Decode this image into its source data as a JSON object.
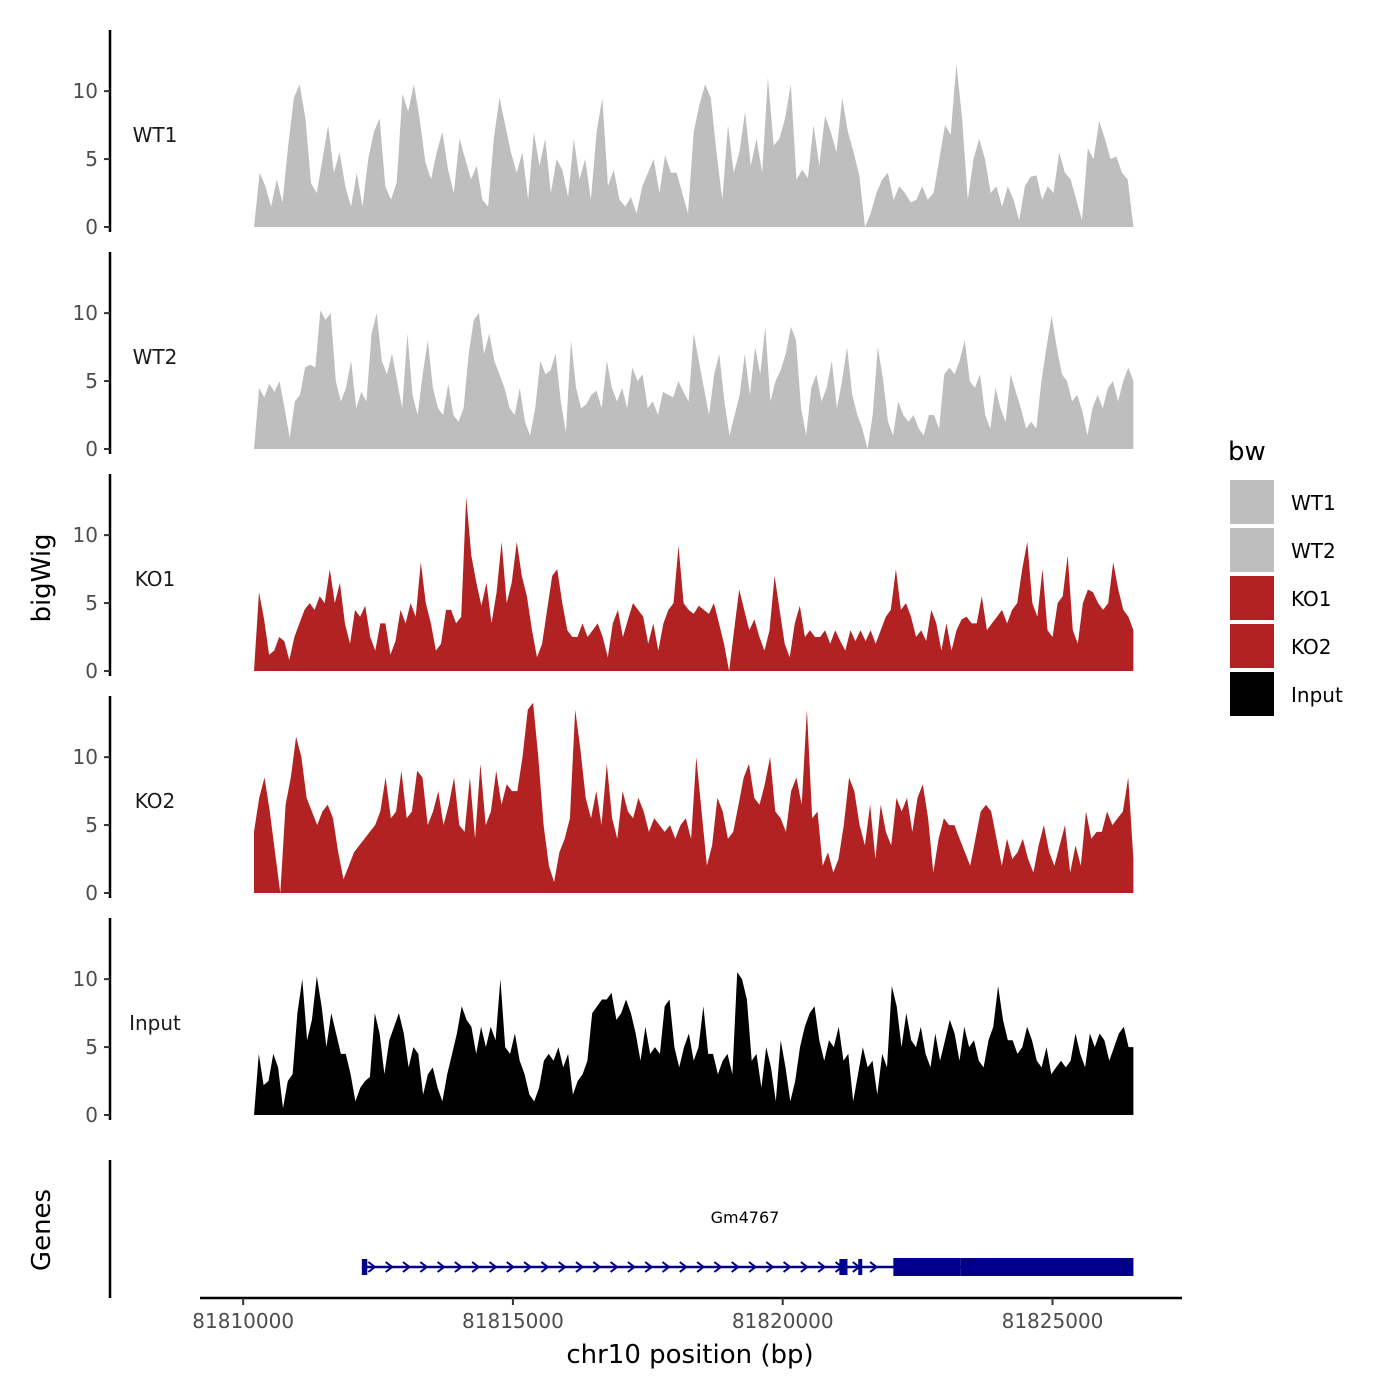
{
  "chart_data": {
    "type": "area",
    "title": "",
    "xlabel": "chr10 position (bp)",
    "ylabel": "bigWig",
    "gene_track_label": "Genes",
    "x_range": [
      81809200,
      81827400
    ],
    "data_x_range": [
      81810200,
      81826500
    ],
    "x_ticks": [
      81810000,
      81815000,
      81820000,
      81825000
    ],
    "x_tick_labels": [
      "81810000",
      "81815000",
      "81820000",
      "81825000"
    ],
    "ylim": [
      0,
      14.5
    ],
    "y_ticks": [
      0,
      5,
      10
    ],
    "y_tick_labels": [
      "0",
      "5",
      "10"
    ],
    "legend": {
      "title": "bw",
      "position": "right",
      "entries": [
        {
          "label": "WT1",
          "color": "#bebebe"
        },
        {
          "label": "WT2",
          "color": "#bebebe"
        },
        {
          "label": "KO1",
          "color": "#b22222"
        },
        {
          "label": "KO2",
          "color": "#b22222"
        },
        {
          "label": "Input",
          "color": "#000000"
        }
      ]
    },
    "series": [
      {
        "name": "WT1",
        "color": "#bebebe",
        "values": [
          0,
          4,
          3,
          1.5,
          3.5,
          1.8,
          6,
          9.5,
          10.5,
          8,
          3.2,
          2.5,
          5,
          7.5,
          4,
          5.5,
          3,
          1.5,
          4,
          1.5,
          5,
          7,
          8,
          3,
          2,
          3.3,
          9.8,
          8.5,
          10.5,
          8,
          4.8,
          3.5,
          5.5,
          7,
          4.2,
          2.5,
          6.5,
          5,
          3.5,
          4.5,
          2,
          1.5,
          6.5,
          9.5,
          7.5,
          5.5,
          4,
          5.5,
          2,
          7,
          4.5,
          6.5,
          2.5,
          5,
          4.2,
          2.2,
          6.5,
          3.5,
          5,
          2,
          7,
          9.5,
          3,
          4.2,
          2,
          1.5,
          2.2,
          1,
          3,
          4,
          5,
          2.5,
          5.3,
          4,
          4,
          2.5,
          1,
          7,
          9,
          10.5,
          9.5,
          5.5,
          2,
          7.5,
          4,
          5.5,
          8.5,
          4.5,
          6.5,
          4,
          11,
          6,
          6.5,
          8,
          10.5,
          3.5,
          4.2,
          3.6,
          7.5,
          4.5,
          8.2,
          7,
          5.5,
          9.5,
          7,
          5.5,
          3.8,
          0,
          1,
          2.5,
          3.5,
          4,
          2,
          3,
          2.5,
          1.8,
          2,
          3,
          2,
          2.5,
          5,
          7.5,
          6.8,
          12,
          8,
          2,
          5,
          6.5,
          5,
          2.5,
          3,
          1.5,
          3,
          2,
          0.5,
          3,
          3.7,
          3.8,
          2,
          3,
          2.5,
          5.5,
          4,
          3.5,
          2,
          0.5,
          5.8,
          5,
          7.8,
          6.5,
          5,
          5.2,
          4,
          3.5,
          0
        ]
      },
      {
        "name": "WT2",
        "color": "#bebebe",
        "values": [
          0,
          4.5,
          3.8,
          4.8,
          4.2,
          5,
          3,
          0.8,
          3.5,
          4,
          6,
          6.2,
          6,
          10.2,
          9.5,
          10,
          5,
          3.5,
          4.5,
          6.5,
          3,
          4.2,
          3.5,
          8.5,
          10,
          6.5,
          5.5,
          7,
          5,
          3,
          8.5,
          4,
          2.5,
          5.5,
          8,
          4.5,
          3,
          2.5,
          4.8,
          2.5,
          2,
          3,
          7,
          9.5,
          10,
          7,
          8.5,
          6.5,
          5.5,
          4.5,
          3,
          2.5,
          4.5,
          2,
          1,
          3,
          6.5,
          5.5,
          5.8,
          7,
          3.5,
          1.2,
          8,
          4.5,
          3,
          3.3,
          4,
          4.3,
          3,
          6.5,
          4.5,
          3.5,
          4.5,
          3,
          6,
          5,
          5.5,
          3,
          3.5,
          2.5,
          4.2,
          4,
          3.8,
          5,
          4.2,
          3.5,
          8.5,
          6.5,
          4.5,
          2.5,
          5.5,
          7,
          3.5,
          1,
          2.5,
          4,
          7,
          4,
          7.5,
          5.5,
          9,
          3.5,
          5,
          5.8,
          7,
          9,
          8,
          3,
          1,
          4.5,
          5.5,
          3.5,
          4.5,
          6.5,
          3,
          5,
          7.5,
          4,
          2.5,
          1.5,
          0,
          2.5,
          7.5,
          5.2,
          2,
          1,
          3.5,
          2.5,
          2,
          2.5,
          1.5,
          1,
          2.5,
          2.5,
          1.5,
          5.5,
          6,
          5.5,
          6.5,
          8,
          5,
          4.5,
          5.5,
          2.5,
          1.5,
          4.5,
          3,
          2,
          5.5,
          4.2,
          3,
          1.5,
          2,
          1.5,
          5,
          7.5,
          9.8,
          7.5,
          5.5,
          5,
          3.5,
          4,
          2.8,
          1,
          3,
          4,
          3,
          4.5,
          5,
          3.5,
          5,
          6,
          5
        ]
      },
      {
        "name": "KO1",
        "color": "#b22222",
        "values": [
          0,
          5.8,
          3.8,
          1.2,
          1.5,
          2.5,
          2.2,
          0.8,
          2.5,
          3.5,
          4.5,
          5,
          4.5,
          5.5,
          5,
          7.5,
          5,
          6.5,
          3.5,
          2,
          4.5,
          4,
          4.8,
          2.5,
          1.5,
          3.5,
          3.5,
          1.2,
          2.2,
          4.5,
          3.5,
          5,
          4,
          8,
          5,
          3.5,
          1.5,
          2,
          4.5,
          4.5,
          3.5,
          4,
          12.8,
          8.5,
          6.5,
          4.8,
          6.5,
          3.5,
          5.8,
          9.5,
          5,
          6.5,
          9.5,
          7,
          5.5,
          3,
          1,
          2,
          4.5,
          7,
          7.5,
          5,
          3,
          2.5,
          2.5,
          3.5,
          2.5,
          3,
          3.5,
          2.5,
          1,
          3.5,
          4.5,
          2.5,
          3.8,
          5,
          4.5,
          4,
          2,
          3.5,
          1.5,
          3.5,
          4.5,
          5,
          9.2,
          5,
          4.5,
          4.2,
          4.8,
          4.5,
          4.2,
          5,
          3.5,
          2,
          0,
          3,
          6,
          4.5,
          3,
          3.8,
          2.5,
          1.5,
          3,
          7,
          4.5,
          2,
          1,
          3.5,
          4.8,
          2.5,
          3,
          2.5,
          2.5,
          3,
          2,
          3,
          2.2,
          1.5,
          3,
          2.2,
          3,
          2.2,
          3,
          2,
          3,
          4,
          4.5,
          7.5,
          4.5,
          5,
          4,
          2.5,
          3,
          2.2,
          4.5,
          3.5,
          1.5,
          3.5,
          1.5,
          3,
          3.8,
          4,
          3.5,
          3.5,
          5.5,
          3,
          3.5,
          4,
          4.5,
          3.5,
          4.5,
          5,
          7.5,
          9.5,
          5,
          4,
          7.5,
          3,
          2.5,
          5,
          5.5,
          8.5,
          3,
          2,
          5,
          6,
          5.8,
          5,
          4.5,
          5,
          8,
          6,
          4.5,
          4,
          3
        ]
      },
      {
        "name": "KO2",
        "color": "#b22222",
        "values": [
          4.5,
          7,
          8.5,
          6,
          3,
          0,
          6.5,
          8.5,
          11.5,
          10,
          7,
          6,
          5,
          6,
          6.5,
          5.5,
          3,
          1,
          2,
          3,
          3.5,
          4,
          4.5,
          5,
          6,
          8.5,
          5.5,
          6,
          9,
          5.5,
          6,
          9,
          8.5,
          5,
          6,
          7.5,
          5,
          6.5,
          8.5,
          5,
          4.5,
          8.5,
          4,
          9.5,
          5,
          6,
          9,
          6.5,
          8,
          7.5,
          7.5,
          10,
          13.5,
          14,
          10,
          5,
          2,
          0.8,
          3,
          4,
          5.5,
          13.5,
          10.5,
          7,
          5.5,
          7.5,
          5,
          9.5,
          5.5,
          4,
          7.5,
          6,
          5.5,
          7,
          6,
          4.5,
          5.5,
          5,
          4.5,
          5,
          4,
          5,
          5.5,
          4,
          10,
          6,
          2,
          3.5,
          7,
          6,
          4,
          4.5,
          6.5,
          8.5,
          9.5,
          7,
          6.5,
          8,
          10,
          6,
          5.5,
          4.5,
          7.5,
          8.5,
          6.5,
          13.5,
          5.5,
          6,
          2,
          3,
          1.5,
          2.5,
          5,
          8.5,
          7.5,
          5,
          3.5,
          6.5,
          2.5,
          6.5,
          4.5,
          3.5,
          7,
          6,
          7,
          4.5,
          7,
          8,
          5.5,
          1.5,
          4,
          5.5,
          5,
          5,
          4,
          3,
          2,
          4,
          6,
          6.5,
          6,
          4,
          2,
          4,
          2.5,
          3,
          4,
          2.5,
          1.5,
          3.5,
          5,
          3,
          2,
          3.5,
          5,
          1.5,
          3.5,
          2,
          6,
          4,
          4.5,
          4.5,
          6,
          5,
          5.5,
          6,
          8.5,
          2.5
        ]
      },
      {
        "name": "Input",
        "color": "#000000",
        "values": [
          0,
          4.5,
          2.2,
          2.5,
          4.5,
          3.5,
          0.5,
          2.5,
          3,
          7.5,
          10,
          5.5,
          7,
          10.2,
          8,
          5,
          7.5,
          6,
          4.5,
          4.5,
          3,
          1,
          2,
          2.5,
          2.8,
          7.5,
          6,
          3,
          5.5,
          6.5,
          7.5,
          6,
          3.5,
          5,
          4.5,
          1.5,
          3,
          3.5,
          2,
          1,
          3,
          4.5,
          6,
          8,
          7,
          6.5,
          4.5,
          6.5,
          5,
          6.5,
          5.5,
          10,
          5,
          4.5,
          6,
          4,
          3,
          1.5,
          1,
          2,
          4,
          4.5,
          4,
          5,
          3.5,
          4.5,
          1.5,
          2.5,
          3,
          4,
          7.5,
          8,
          8.5,
          8.5,
          9,
          7,
          7.5,
          8.5,
          7.5,
          6,
          4,
          6.5,
          4.5,
          5,
          4.5,
          8,
          8.5,
          5,
          3.5,
          5,
          6,
          4,
          5,
          8,
          4.5,
          4.5,
          3,
          4,
          4.5,
          3,
          10.5,
          10,
          8.5,
          4,
          4.5,
          2,
          5,
          3.5,
          1,
          5.5,
          3.5,
          1,
          2.5,
          5,
          6.5,
          7.5,
          8,
          5.5,
          4,
          5.5,
          5,
          6.5,
          4,
          4.5,
          1,
          3,
          5,
          3.5,
          4,
          1.5,
          4.5,
          3.5,
          9.5,
          8,
          5,
          7.5,
          5.5,
          5,
          6.5,
          4.5,
          3.5,
          6,
          4,
          5.5,
          7,
          6,
          4,
          6.5,
          5,
          5.5,
          4,
          3.5,
          5.5,
          6.5,
          9.5,
          7,
          5.5,
          5.5,
          4.5,
          5,
          6.5,
          5.5,
          4,
          3.5,
          5,
          3,
          3.5,
          4,
          3.5,
          4,
          6,
          4.5,
          3.5,
          6,
          5,
          6,
          5.5,
          4,
          5,
          6,
          6.5,
          5,
          5
        ]
      }
    ],
    "gene": {
      "name": "Gm4767",
      "strand": "+",
      "color": "#00008b",
      "start": 81812200,
      "end": 81826500,
      "exons": [
        {
          "start": 81812200,
          "end": 81812300,
          "type": "utr"
        },
        {
          "start": 81821050,
          "end": 81821200,
          "type": "utr"
        },
        {
          "start": 81821400,
          "end": 81821450,
          "type": "utr"
        },
        {
          "start": 81822050,
          "end": 81823300,
          "type": "cds"
        },
        {
          "start": 81823300,
          "end": 81826500,
          "type": "cds"
        }
      ]
    }
  }
}
